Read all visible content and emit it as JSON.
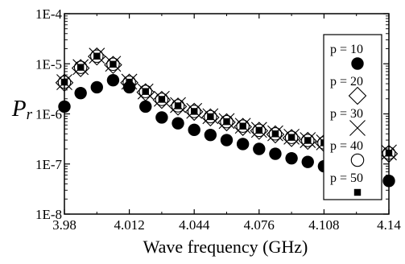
{
  "chart_data": {
    "type": "scatter",
    "xlabel": "Wave frequency (GHz)",
    "ylabel": "P",
    "ylabel_subscript": "r",
    "y_scale": "log",
    "xlim": [
      3.98,
      4.14
    ],
    "ylim": [
      1e-08,
      0.0001
    ],
    "x_ticks": [
      "3.98",
      "4.012",
      "4.044",
      "4.076",
      "4.108",
      "4.14"
    ],
    "y_ticks": [
      "1E-8",
      "1E-7",
      "1E-6",
      "1E-5",
      "1E-4"
    ],
    "legend_position": "right",
    "grid": false,
    "x": [
      3.98,
      3.988,
      3.996,
      4.004,
      4.012,
      4.02,
      4.028,
      4.036,
      4.044,
      4.052,
      4.06,
      4.068,
      4.076,
      4.084,
      4.092,
      4.1,
      4.108,
      4.116,
      4.124,
      4.132,
      4.14
    ],
    "series": [
      {
        "name": "p = 10",
        "marker": "filled-circle",
        "values": [
          1.4e-06,
          2.6e-06,
          3.4e-06,
          4.7e-06,
          3.4e-06,
          1.4e-06,
          8.5e-07,
          6.5e-07,
          4.8e-07,
          3.8e-07,
          3e-07,
          2.5e-07,
          2e-07,
          1.6e-07,
          1.3e-07,
          1.1e-07,
          9e-08,
          7.6e-08,
          6.4e-08,
          5.4e-08,
          4.6e-08
        ]
      },
      {
        "name": "p = 20",
        "marker": "open-diamond",
        "values": [
          4.2e-06,
          8.2e-06,
          1.4e-05,
          9.5e-06,
          4.2e-06,
          2.7e-06,
          1.9e-06,
          1.4e-06,
          1.1e-06,
          8.5e-07,
          6.8e-07,
          5.5e-07,
          4.6e-07,
          3.9e-07,
          3.3e-07,
          2.9e-07,
          2.6e-07,
          2.2e-07,
          2e-07,
          1.8e-07,
          1.6e-07
        ]
      },
      {
        "name": "p = 30",
        "marker": "cross",
        "values": [
          4.3e-06,
          8.6e-06,
          1.45e-05,
          1e-05,
          4.4e-06,
          2.8e-06,
          2e-06,
          1.5e-06,
          1.15e-06,
          9e-07,
          7.2e-07,
          5.8e-07,
          4.8e-07,
          4.1e-07,
          3.5e-07,
          3e-07,
          2.7e-07,
          2.3e-07,
          2.1e-07,
          1.9e-07,
          1.7e-07
        ]
      },
      {
        "name": "p = 40",
        "marker": "open-circle",
        "values": [
          4.3e-06,
          8.5e-06,
          1.42e-05,
          9.8e-06,
          4.3e-06,
          2.8e-06,
          1.95e-06,
          1.45e-06,
          1.12e-06,
          8.8e-07,
          7e-07,
          5.7e-07,
          4.7e-07,
          4e-07,
          3.4e-07,
          2.95e-07,
          2.65e-07,
          2.25e-07,
          2.05e-07,
          1.85e-07,
          1.65e-07
        ]
      },
      {
        "name": "p = 50",
        "marker": "filled-square",
        "values": [
          4.3e-06,
          8.5e-06,
          1.42e-05,
          9.8e-06,
          4.3e-06,
          2.8e-06,
          1.95e-06,
          1.45e-06,
          1.12e-06,
          8.8e-07,
          7e-07,
          5.7e-07,
          4.7e-07,
          4e-07,
          3.4e-07,
          2.95e-07,
          2.65e-07,
          2.25e-07,
          2.05e-07,
          1.85e-07,
          1.65e-07
        ]
      }
    ]
  }
}
